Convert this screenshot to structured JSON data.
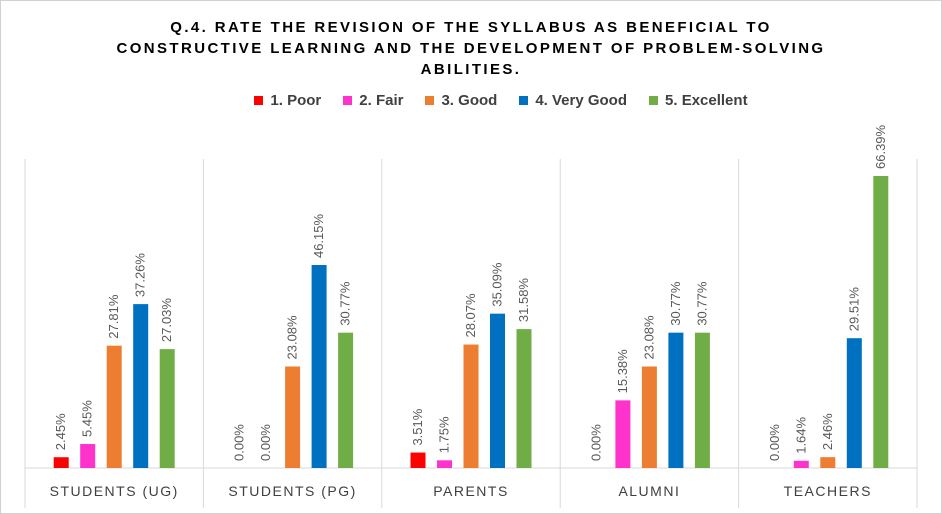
{
  "chart_data": {
    "type": "bar",
    "title_lines": [
      "Q.4. RATE THE REVISION OF THE SYLLABUS AS BENEFICIAL TO",
      "CONSTRUCTIVE LEARNING AND THE DEVELOPMENT OF PROBLEM-SOLVING",
      "ABILITIES."
    ],
    "categories": [
      "STUDENTS (UG)",
      "STUDENTS (PG)",
      "PARENTS",
      "ALUMNI",
      "TEACHERS"
    ],
    "series": [
      {
        "name": "1.  Poor",
        "color": "#ff0000",
        "values": [
          2.45,
          0.0,
          3.51,
          0.0,
          0.0
        ],
        "labels": [
          "2.45%",
          "0.00%",
          "3.51%",
          "0.00%",
          "0.00%"
        ]
      },
      {
        "name": "2.  Fair",
        "color": "#ff33cc",
        "values": [
          5.45,
          0.0,
          1.75,
          15.38,
          1.64
        ],
        "labels": [
          "5.45%",
          "0.00%",
          "1.75%",
          "15.38%",
          "1.64%"
        ]
      },
      {
        "name": "3.  Good",
        "color": "#ed7d31",
        "values": [
          27.81,
          23.08,
          28.07,
          23.08,
          2.46
        ],
        "labels": [
          "27.81%",
          "23.08%",
          "28.07%",
          "23.08%",
          "2.46%"
        ]
      },
      {
        "name": "4.  Very Good",
        "color": "#0070c0",
        "values": [
          37.26,
          46.15,
          35.09,
          30.77,
          29.51
        ],
        "labels": [
          "37.26%",
          "46.15%",
          "35.09%",
          "30.77%",
          "29.51%"
        ]
      },
      {
        "name": "5.  Excellent",
        "color": "#70ad47",
        "values": [
          27.03,
          30.77,
          31.58,
          30.77,
          66.39
        ],
        "labels": [
          "27.03%",
          "30.77%",
          "31.58%",
          "30.77%",
          "66.39%"
        ]
      }
    ],
    "ylim": [
      0,
      70
    ],
    "grid": false,
    "legend_position": "top"
  }
}
